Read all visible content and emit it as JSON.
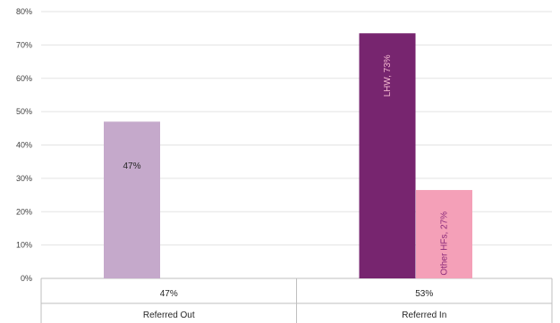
{
  "chart_data": {
    "type": "bar",
    "title": "",
    "xlabel": "",
    "ylabel": "",
    "ylim": [
      0,
      80
    ],
    "yticks": [
      0,
      10,
      20,
      30,
      40,
      50,
      60,
      70,
      80
    ],
    "ytick_suffix": "%",
    "grid": true,
    "legend": "none",
    "categories": [
      {
        "name": "Referred Out",
        "table_value": "47%"
      },
      {
        "name": "Referred In",
        "table_value": "53%"
      }
    ],
    "bars": [
      {
        "category": "Referred Out",
        "label": "47%",
        "value": 47,
        "color": "#c5a9cb",
        "label_color": "#262626",
        "label_orientation": "horizontal"
      },
      {
        "category": "Referred In",
        "label": "LHW, 73%",
        "value": 73.5,
        "color": "#77256f",
        "label_color": "#f4b8d0",
        "label_orientation": "vertical"
      },
      {
        "category": "Referred In",
        "label": "Other HFs, 27%",
        "value": 26.5,
        "color": "#f4a0b8",
        "label_color": "#8b2a7a",
        "label_orientation": "vertical"
      }
    ]
  }
}
